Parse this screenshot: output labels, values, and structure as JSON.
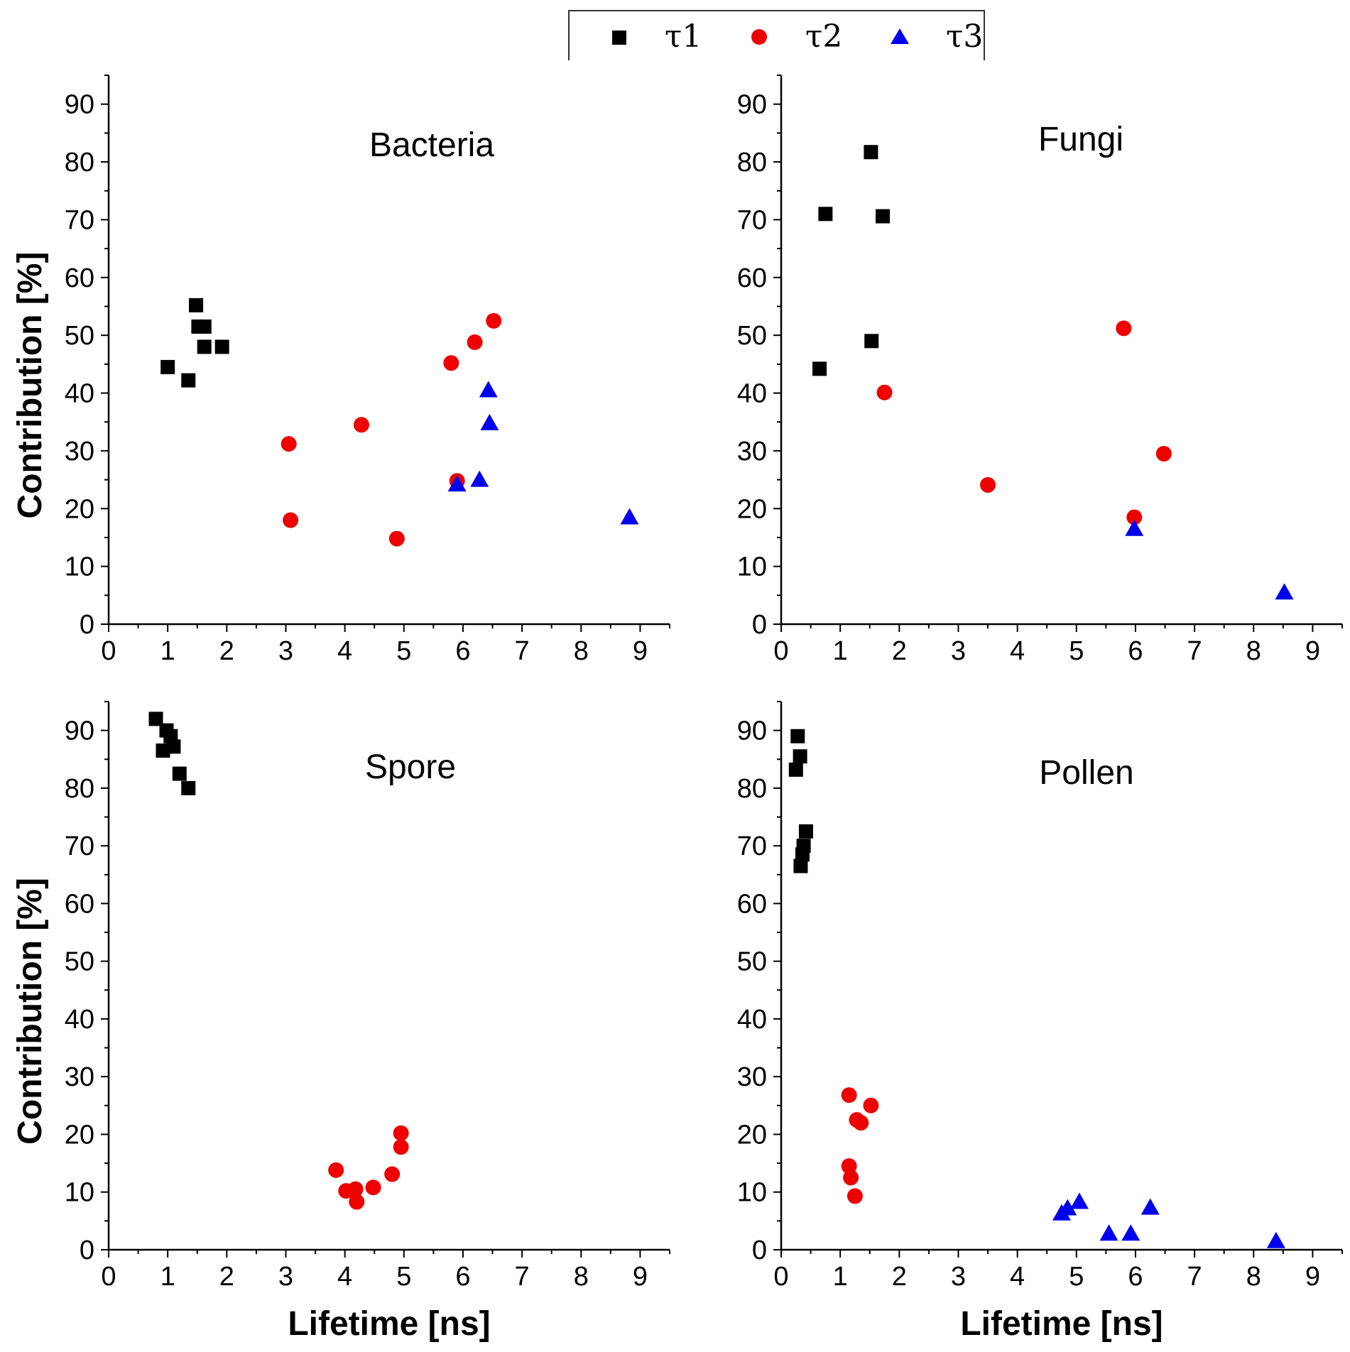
{
  "legend": [
    {
      "label": "τ1",
      "marker": "square",
      "color": "#000000"
    },
    {
      "label": "τ2",
      "marker": "circle",
      "color": "#ee0000"
    },
    {
      "label": "τ3",
      "marker": "triangle",
      "color": "#0000ee"
    }
  ],
  "chart_data": [
    {
      "type": "scatter",
      "title": "Bacteria",
      "xlabel": "",
      "ylabel": "Contribution [%]",
      "xlim": [
        0,
        9.5
      ],
      "ylim": [
        0,
        95
      ],
      "xticks": [
        "0",
        "1",
        "2",
        "3",
        "4",
        "5",
        "6",
        "7",
        "8",
        "9"
      ],
      "yticks": [
        "0",
        "10",
        "20",
        "30",
        "40",
        "50",
        "60",
        "70",
        "80",
        "90"
      ],
      "series": [
        {
          "name": "τ1",
          "points": [
            [
              1.0,
              44.5
            ],
            [
              1.35,
              42.2
            ],
            [
              1.48,
              55.2
            ],
            [
              1.52,
              51.5
            ],
            [
              1.62,
              51.5
            ],
            [
              1.62,
              48
            ],
            [
              1.92,
              48
            ]
          ]
        },
        {
          "name": "τ2",
          "points": [
            [
              3.05,
              31.2
            ],
            [
              3.08,
              18
            ],
            [
              4.28,
              34.5
            ],
            [
              4.88,
              14.8
            ],
            [
              5.8,
              45.2
            ],
            [
              5.9,
              24.8
            ],
            [
              6.2,
              48.8
            ],
            [
              6.52,
              52.5
            ]
          ]
        },
        {
          "name": "τ3",
          "points": [
            [
              5.9,
              24.2
            ],
            [
              6.28,
              25
            ],
            [
              6.43,
              40.5
            ],
            [
              6.45,
              34.8
            ],
            [
              8.82,
              18.5
            ]
          ]
        }
      ]
    },
    {
      "type": "scatter",
      "title": "Fungi",
      "xlabel": "",
      "ylabel": "",
      "xlim": [
        0,
        9.5
      ],
      "ylim": [
        0,
        95
      ],
      "xticks": [
        "0",
        "1",
        "2",
        "3",
        "4",
        "5",
        "6",
        "7",
        "8",
        "9"
      ],
      "yticks": [
        "0",
        "10",
        "20",
        "30",
        "40",
        "50",
        "60",
        "70",
        "80",
        "90"
      ],
      "series": [
        {
          "name": "τ1",
          "points": [
            [
              0.65,
              44.2
            ],
            [
              0.75,
              71
            ],
            [
              1.52,
              81.7
            ],
            [
              1.53,
              49
            ],
            [
              1.72,
              70.6
            ]
          ]
        },
        {
          "name": "τ2",
          "points": [
            [
              1.75,
              40.1
            ],
            [
              3.5,
              24.1
            ],
            [
              5.8,
              51.2
            ],
            [
              5.98,
              18.5
            ],
            [
              6.48,
              29.5
            ]
          ]
        },
        {
          "name": "τ3",
          "points": [
            [
              5.98,
              16.5
            ],
            [
              8.52,
              5.5
            ]
          ]
        }
      ]
    },
    {
      "type": "scatter",
      "title": "Spore",
      "xlabel": "Lifetime [ns]",
      "ylabel": "Contribution [%]",
      "xlim": [
        0,
        9.5
      ],
      "ylim": [
        0,
        95
      ],
      "xticks": [
        "0",
        "1",
        "2",
        "3",
        "4",
        "5",
        "6",
        "7",
        "8",
        "9"
      ],
      "yticks": [
        "0",
        "10",
        "20",
        "30",
        "40",
        "50",
        "60",
        "70",
        "80",
        "90"
      ],
      "series": [
        {
          "name": "τ1",
          "points": [
            [
              0.8,
              92
            ],
            [
              0.92,
              86.5
            ],
            [
              0.98,
              90
            ],
            [
              1.05,
              89
            ],
            [
              1.1,
              87.2
            ],
            [
              1.2,
              82.5
            ],
            [
              1.35,
              80
            ]
          ]
        },
        {
          "name": "τ2",
          "points": [
            [
              3.85,
              13.8
            ],
            [
              4.02,
              10.2
            ],
            [
              4.18,
              10.5
            ],
            [
              4.2,
              8.3
            ],
            [
              4.48,
              10.8
            ],
            [
              4.8,
              13.1
            ],
            [
              4.95,
              20.2
            ],
            [
              4.95,
              17.8
            ]
          ]
        },
        {
          "name": "τ3",
          "points": []
        }
      ]
    },
    {
      "type": "scatter",
      "title": "Pollen",
      "xlabel": "Lifetime [ns]",
      "ylabel": "",
      "xlim": [
        0,
        9.5
      ],
      "ylim": [
        0,
        95
      ],
      "xticks": [
        "0",
        "1",
        "2",
        "3",
        "4",
        "5",
        "6",
        "7",
        "8",
        "9"
      ],
      "yticks": [
        "0",
        "10",
        "20",
        "30",
        "40",
        "50",
        "60",
        "70",
        "80",
        "90"
      ],
      "series": [
        {
          "name": "τ1",
          "points": [
            [
              0.25,
              83.2
            ],
            [
              0.28,
              89
            ],
            [
              0.32,
              85.5
            ],
            [
              0.33,
              66.5
            ],
            [
              0.36,
              68.5
            ],
            [
              0.38,
              70
            ],
            [
              0.42,
              72.5
            ]
          ]
        },
        {
          "name": "τ2",
          "points": [
            [
              1.15,
              26.8
            ],
            [
              1.15,
              14.5
            ],
            [
              1.18,
              12.5
            ],
            [
              1.25,
              9.3
            ],
            [
              1.28,
              22.5
            ],
            [
              1.35,
              22
            ],
            [
              1.52,
              25
            ]
          ]
        },
        {
          "name": "τ3",
          "points": [
            [
              4.75,
              6.3
            ],
            [
              4.85,
              7.2
            ],
            [
              5.05,
              8.3
            ],
            [
              5.55,
              2.8
            ],
            [
              5.92,
              2.8
            ],
            [
              6.25,
              7.3
            ],
            [
              8.38,
              1.5
            ]
          ]
        }
      ]
    }
  ]
}
